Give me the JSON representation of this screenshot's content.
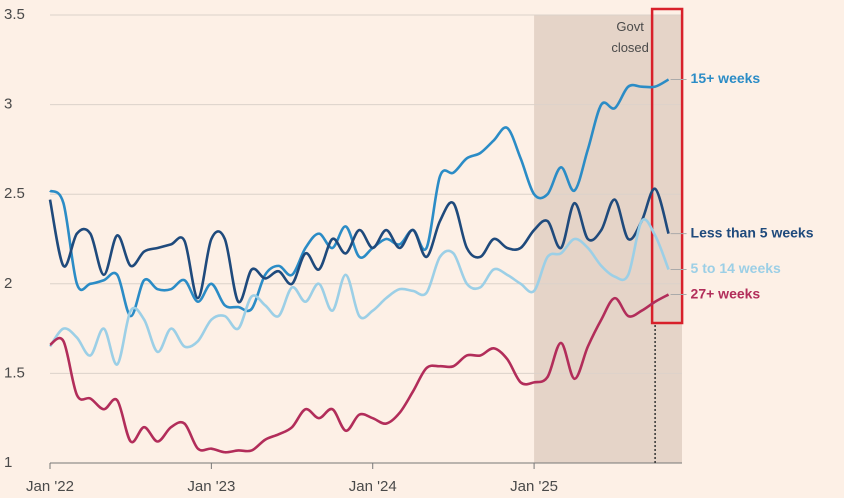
{
  "chart_data": {
    "type": "line",
    "x": [
      0,
      1,
      2,
      3,
      4,
      5,
      6,
      7,
      8,
      9,
      10,
      11,
      12,
      13,
      14,
      15,
      16,
      17,
      18,
      19,
      20,
      21,
      22,
      23,
      24,
      25,
      26,
      27,
      28,
      29,
      30,
      31,
      32,
      33,
      34,
      35,
      36,
      37,
      38,
      39,
      40,
      41,
      42,
      43,
      44,
      45,
      46
    ],
    "xlim": [
      0,
      47
    ],
    "xticks": [
      {
        "value": 0,
        "label": "Jan '22"
      },
      {
        "value": 12,
        "label": "Jan '23"
      },
      {
        "value": 24,
        "label": "Jan '24"
      },
      {
        "value": 36,
        "label": "Jan '25"
      }
    ],
    "ylim": [
      1,
      3.5
    ],
    "yticks": [
      1,
      1.5,
      2,
      2.5,
      3,
      3.5
    ],
    "grid": true,
    "shaded_range": [
      36,
      47
    ],
    "annotations": [
      {
        "text": "Govt closed",
        "x": 45
      }
    ],
    "series": [
      {
        "name": "15+ weeks",
        "color": "#2b8cc6",
        "values": [
          2.52,
          2.45,
          2.0,
          2.0,
          2.02,
          2.05,
          1.82,
          2.02,
          1.97,
          1.97,
          2.02,
          1.9,
          2.0,
          1.88,
          1.87,
          1.86,
          2.05,
          2.1,
          2.05,
          2.2,
          2.28,
          2.2,
          2.32,
          2.15,
          2.2,
          2.25,
          2.22,
          2.3,
          2.2,
          2.6,
          2.62,
          2.7,
          2.73,
          2.8,
          2.87,
          2.7,
          2.5,
          2.5,
          2.65,
          2.52,
          2.75,
          3.0,
          2.98,
          3.1,
          3.1,
          3.1,
          3.14
        ]
      },
      {
        "name": "Less than 5 weeks",
        "color": "#1f4a7c",
        "values": [
          2.47,
          2.1,
          2.28,
          2.28,
          2.05,
          2.27,
          2.1,
          2.18,
          2.2,
          2.22,
          2.24,
          1.92,
          2.25,
          2.25,
          1.9,
          2.08,
          2.03,
          2.07,
          2.0,
          2.17,
          2.08,
          2.25,
          2.17,
          2.3,
          2.2,
          2.3,
          2.2,
          2.3,
          2.15,
          2.35,
          2.45,
          2.2,
          2.15,
          2.25,
          2.2,
          2.2,
          2.3,
          2.35,
          2.2,
          2.45,
          2.25,
          2.3,
          2.47,
          2.25,
          2.35,
          2.53,
          2.28
        ]
      },
      {
        "name": "5 to 14 weeks",
        "color": "#9ccfe6",
        "values": [
          1.65,
          1.75,
          1.7,
          1.6,
          1.75,
          1.55,
          1.85,
          1.8,
          1.62,
          1.75,
          1.65,
          1.68,
          1.8,
          1.82,
          1.75,
          1.93,
          1.88,
          1.82,
          1.98,
          1.9,
          2.0,
          1.85,
          2.05,
          1.82,
          1.85,
          1.92,
          1.97,
          1.96,
          1.95,
          2.15,
          2.17,
          2.0,
          1.98,
          2.08,
          2.05,
          2.0,
          1.96,
          2.15,
          2.17,
          2.25,
          2.2,
          2.1,
          2.04,
          2.05,
          2.35,
          2.27,
          2.08
        ]
      },
      {
        "name": "27+ weeks",
        "color": "#b22d5a",
        "values": [
          1.66,
          1.68,
          1.38,
          1.36,
          1.3,
          1.35,
          1.12,
          1.2,
          1.12,
          1.2,
          1.22,
          1.08,
          1.08,
          1.06,
          1.07,
          1.07,
          1.13,
          1.16,
          1.2,
          1.3,
          1.25,
          1.3,
          1.18,
          1.27,
          1.25,
          1.22,
          1.28,
          1.4,
          1.53,
          1.54,
          1.54,
          1.6,
          1.6,
          1.64,
          1.58,
          1.45,
          1.45,
          1.48,
          1.67,
          1.47,
          1.65,
          1.8,
          1.92,
          1.82,
          1.85,
          1.9,
          1.94
        ]
      }
    ]
  }
}
